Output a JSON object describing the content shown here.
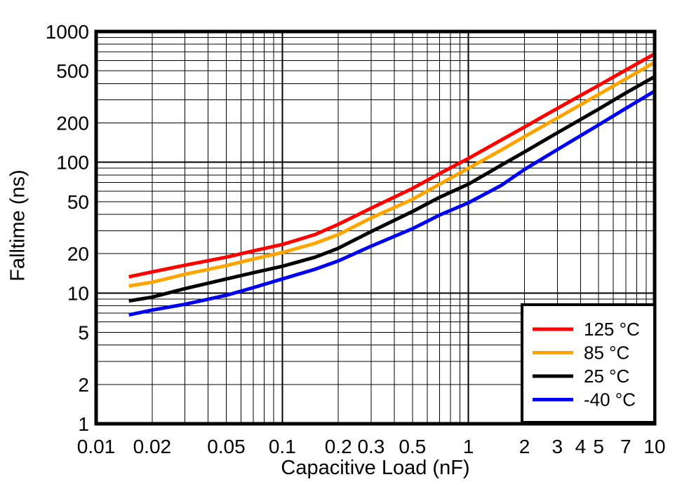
{
  "chart_data": {
    "type": "line",
    "title": "",
    "xlabel": "Capacitive Load (nF)",
    "ylabel": "Falltime (ns)",
    "x_scale": "log",
    "y_scale": "log",
    "xlim": [
      0.01,
      10
    ],
    "ylim": [
      1,
      1000
    ],
    "grid": "full log minor and major grid, black lines on white",
    "legend_position": "inside bottom-right, boxed",
    "x_ticks": [
      {
        "value": 0.01,
        "label": "0.01"
      },
      {
        "value": 0.02,
        "label": "0.02"
      },
      {
        "value": 0.05,
        "label": "0.05"
      },
      {
        "value": 0.1,
        "label": "0.1"
      },
      {
        "value": 0.2,
        "label": "0.2"
      },
      {
        "value": 0.3,
        "label": "0.3"
      },
      {
        "value": 0.5,
        "label": "0.5"
      },
      {
        "value": 1,
        "label": "1"
      },
      {
        "value": 2,
        "label": "2"
      },
      {
        "value": 3,
        "label": "3"
      },
      {
        "value": 4,
        "label": "4"
      },
      {
        "value": 5,
        "label": "5"
      },
      {
        "value": 7,
        "label": "7"
      },
      {
        "value": 10,
        "label": "10"
      }
    ],
    "y_ticks": [
      {
        "value": 1000,
        "label": "1000"
      },
      {
        "value": 500,
        "label": "500"
      },
      {
        "value": 200,
        "label": "200"
      },
      {
        "value": 100,
        "label": "100"
      },
      {
        "value": 50,
        "label": "50"
      },
      {
        "value": 20,
        "label": "20"
      },
      {
        "value": 10,
        "label": "10"
      },
      {
        "value": 5,
        "label": "5"
      },
      {
        "value": 2,
        "label": "2"
      },
      {
        "value": 1,
        "label": "1"
      }
    ],
    "x": [
      0.015,
      0.02,
      0.03,
      0.05,
      0.07,
      0.1,
      0.15,
      0.2,
      0.3,
      0.5,
      0.7,
      1,
      1.5,
      2,
      3,
      5,
      7,
      10
    ],
    "series": [
      {
        "name": "125 °C",
        "color": "#ff0000",
        "values": [
          13.3,
          14.5,
          16.3,
          18.8,
          21.0,
          23.5,
          28.0,
          33.5,
          44.5,
          63,
          82,
          107,
          148,
          186,
          258,
          387,
          507,
          675
        ]
      },
      {
        "name": "85 °C",
        "color": "#ffa500",
        "values": [
          11.3,
          12.1,
          13.9,
          16.2,
          18.2,
          20.4,
          24.0,
          28.0,
          37.5,
          52,
          68,
          90,
          124,
          157,
          218,
          330,
          434,
          581
        ]
      },
      {
        "name": "25 °C",
        "color": "#000000",
        "values": [
          8.7,
          9.3,
          10.8,
          12.8,
          14.3,
          16.0,
          18.8,
          22.0,
          29.5,
          42,
          54,
          68,
          95,
          120,
          168,
          255,
          339,
          452
        ]
      },
      {
        "name": "-40 °C",
        "color": "#0000ee",
        "values": [
          6.8,
          7.4,
          8.2,
          9.6,
          11.0,
          12.8,
          15.2,
          17.6,
          22.8,
          31,
          39.5,
          49,
          66.5,
          88,
          125,
          193,
          258,
          350
        ]
      }
    ]
  },
  "legend": {
    "entries": [
      {
        "label": "125 °C",
        "color": "#ff0000"
      },
      {
        "label": "85 °C",
        "color": "#ffa500"
      },
      {
        "label": "25 °C",
        "color": "#000000"
      },
      {
        "label": "-40 °C",
        "color": "#0000ee"
      }
    ]
  },
  "colors": {
    "foreground": "#000000",
    "background": "#ffffff"
  }
}
